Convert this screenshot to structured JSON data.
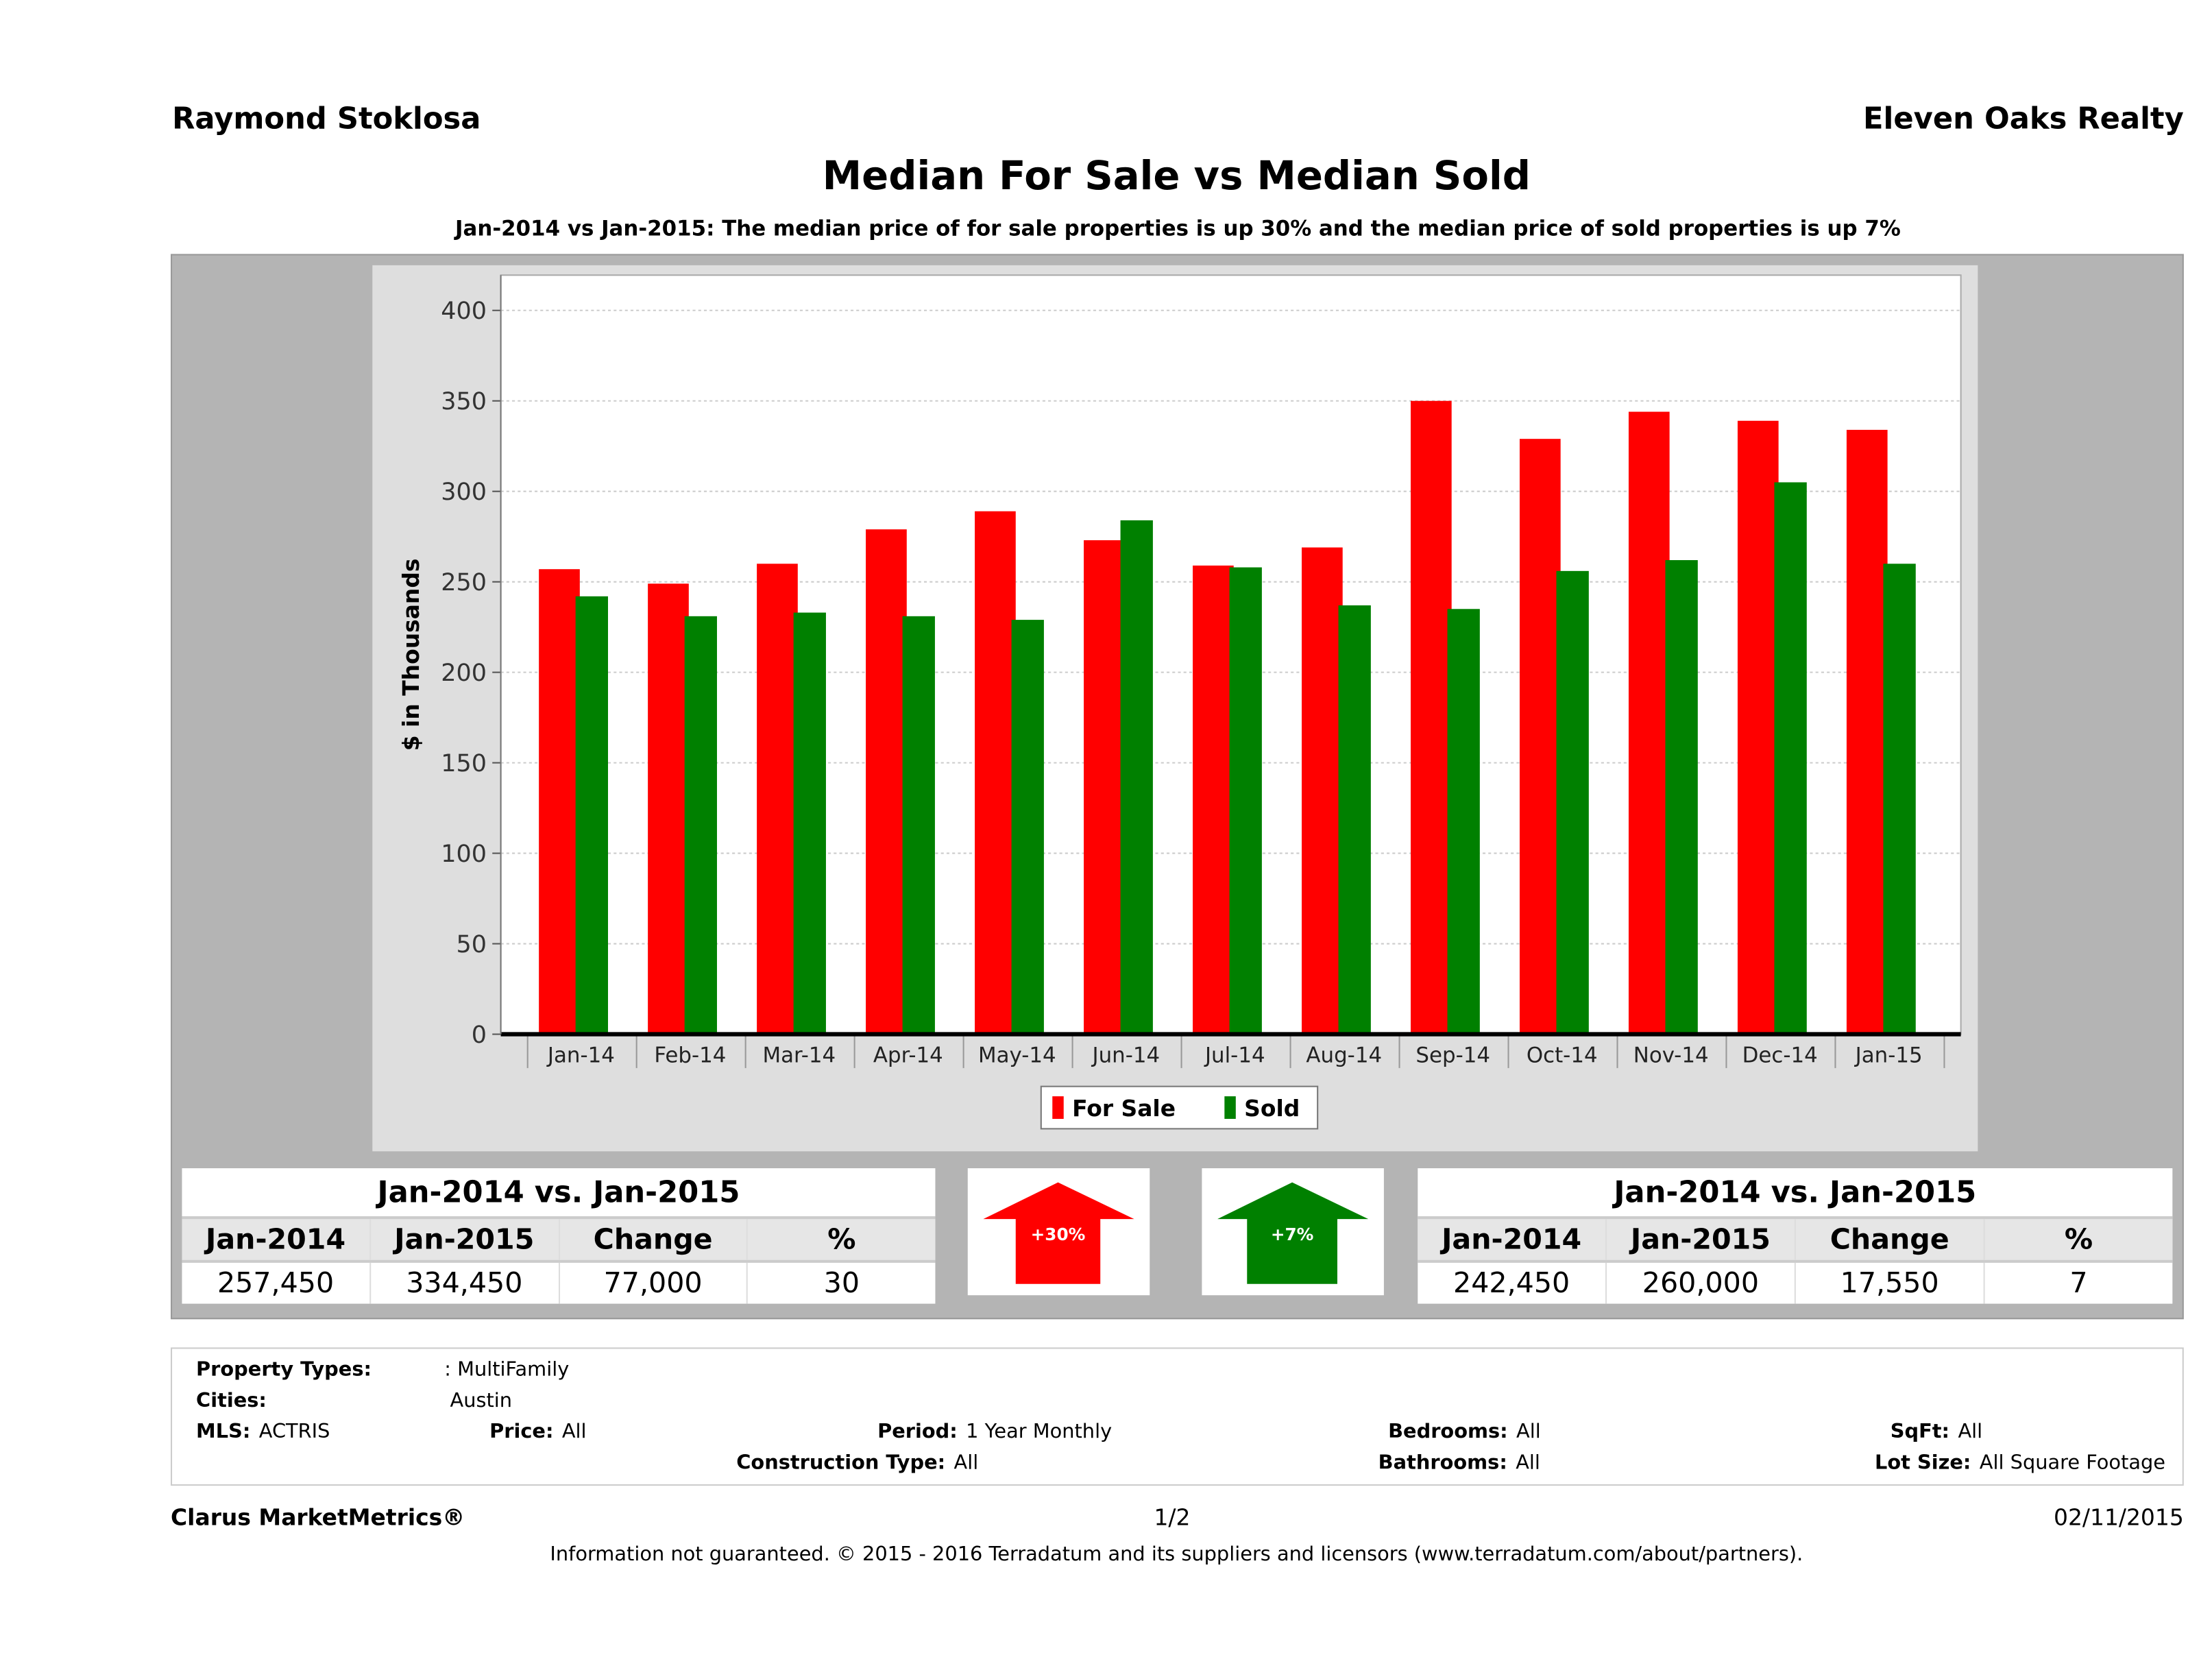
{
  "header": {
    "agent": "Raymond Stoklosa",
    "company": "Eleven Oaks Realty"
  },
  "chart_data": {
    "type": "bar",
    "title": "Median For Sale vs Median Sold",
    "subtitle": "Jan-2014 vs Jan-2015: The median price of for sale properties is up 30% and the median price of sold properties is up 7%",
    "xlabel": "",
    "ylabel": "$ in Thousands",
    "ylim": [
      0,
      400
    ],
    "yticks": [
      0,
      50,
      100,
      150,
      200,
      250,
      300,
      350,
      400
    ],
    "grid": true,
    "legend_placement": "bottom",
    "categories": [
      "Jan-14",
      "Feb-14",
      "Mar-14",
      "Apr-14",
      "May-14",
      "Jun-14",
      "Jul-14",
      "Aug-14",
      "Sep-14",
      "Oct-14",
      "Nov-14",
      "Dec-14",
      "Jan-15"
    ],
    "series": [
      {
        "name": "For Sale",
        "color": "#ff0000",
        "values": [
          257,
          249,
          260,
          279,
          289,
          273,
          259,
          269,
          350,
          329,
          344,
          339,
          334
        ]
      },
      {
        "name": "Sold",
        "color": "#008000",
        "values": [
          242,
          231,
          233,
          231,
          229,
          284,
          258,
          237,
          235,
          256,
          262,
          305,
          260
        ]
      }
    ]
  },
  "for_sale_table": {
    "title": "Jan-2014 vs. Jan-2015",
    "headers": [
      "Jan-2014",
      "Jan-2015",
      "Change",
      "%"
    ],
    "values": [
      "257,450",
      "334,450",
      "77,000",
      "30"
    ]
  },
  "sold_table": {
    "title": "Jan-2014 vs. Jan-2015",
    "headers": [
      "Jan-2014",
      "Jan-2015",
      "Change",
      "%"
    ],
    "values": [
      "242,450",
      "260,000",
      "17,550",
      "7"
    ]
  },
  "arrows": {
    "for_sale": {
      "label": "+30%",
      "color": "#ff0000",
      "direction": "up"
    },
    "sold": {
      "label": "+7%",
      "color": "#008000",
      "direction": "up"
    }
  },
  "info": {
    "property_types_label": "Property Types:",
    "property_types": ": MultiFamily",
    "cities_label": "Cities:",
    "cities": "Austin",
    "mls_label": "MLS:",
    "mls": "ACTRIS",
    "price_label": "Price:",
    "price": "All",
    "period_label": "Period:",
    "period": "1 Year Monthly",
    "bedrooms_label": "Bedrooms:",
    "bedrooms": "All",
    "sqft_label": "SqFt:",
    "sqft": "All",
    "construction_label": "Construction Type:",
    "construction": "All",
    "bathrooms_label": "Bathrooms:",
    "bathrooms": "All",
    "lot_label": "Lot Size:",
    "lot": "All Square Footage"
  },
  "footer": {
    "brand": "Clarus MarketMetrics®",
    "page": "1/2",
    "date": "02/11/2015",
    "disclaimer": "Information not guaranteed. © 2015 - 2016 Terradatum and its suppliers and licensors (www.terradatum.com/about/partners)."
  }
}
